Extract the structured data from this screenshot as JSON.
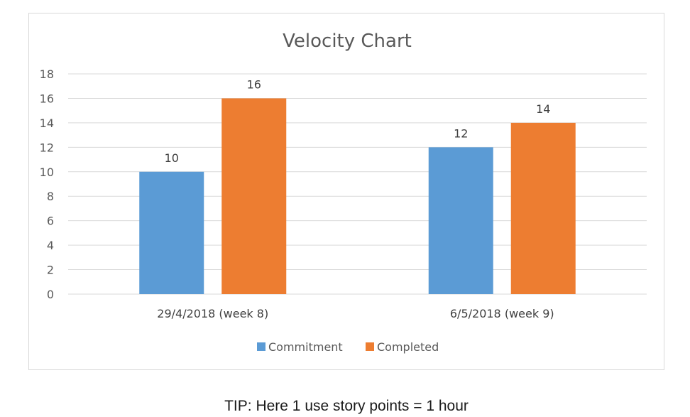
{
  "chart_data": {
    "type": "bar",
    "title": "Velocity Chart",
    "categories": [
      "29/4/2018 (week 8)",
      "6/5/2018 (week 9)"
    ],
    "series": [
      {
        "name": "Commitment",
        "values": [
          10,
          12
        ],
        "color": "#5b9bd5"
      },
      {
        "name": "Completed",
        "values": [
          16,
          14
        ],
        "color": "#ed7d31"
      }
    ],
    "ylim": [
      0,
      18
    ],
    "yticks": [
      0,
      2,
      4,
      6,
      8,
      10,
      12,
      14,
      16,
      18
    ],
    "grid": true,
    "legend_position": "bottom",
    "data_labels": true
  },
  "tip": "TIP: Here 1 use story points = 1 hour"
}
